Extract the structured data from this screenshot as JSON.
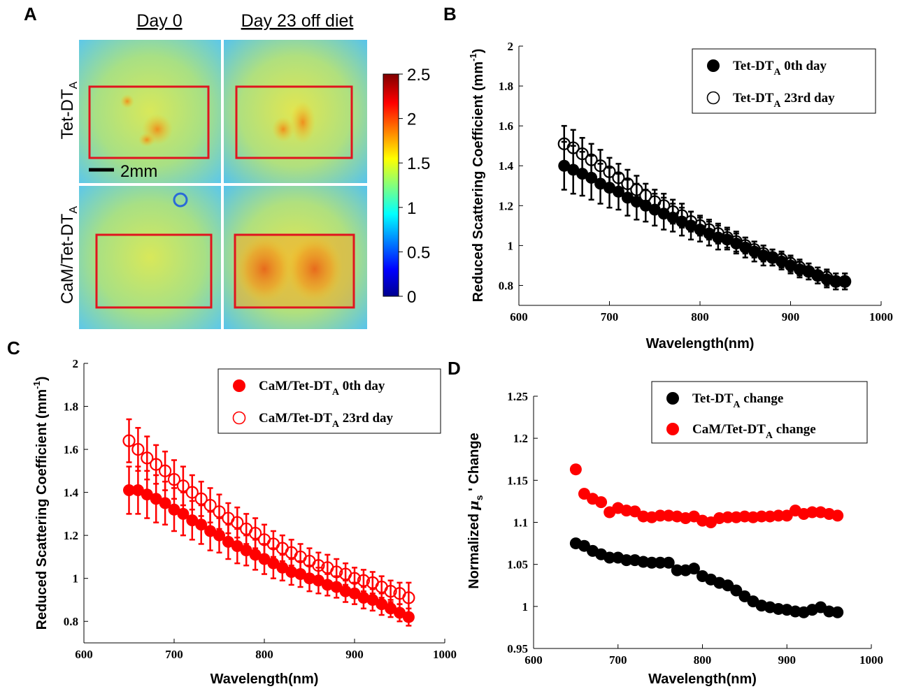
{
  "panel_labels": [
    "A",
    "B",
    "C",
    "D"
  ],
  "panel_a": {
    "column_headers": [
      "Day 0",
      "Day 23 off diet"
    ],
    "row_labels": [
      {
        "main": "Tet-DT",
        "sub": "A"
      },
      {
        "main": "CaM/Tet-DT",
        "sub": "A"
      }
    ],
    "scale_bar_label": "2mm",
    "colorbar": {
      "ticks": [
        "2.5",
        "2",
        "1.5",
        "1",
        "0.5",
        "0"
      ],
      "min": 0,
      "max": 2.5,
      "colormap": "jet"
    },
    "roi_color": "#e0141e"
  },
  "chart_data": [
    {
      "panel": "B",
      "type": "scatter",
      "xlabel": "Wavelength(nm)",
      "ylabel": "Reduced Scattering Coefficient (mm⁻¹)",
      "xlim": [
        600,
        1000
      ],
      "ylim": [
        0.7,
        2.0
      ],
      "xticks": [
        600,
        700,
        800,
        900,
        1000
      ],
      "yticks": [
        0.8,
        1,
        1.2,
        1.4,
        1.6,
        1.8,
        2
      ],
      "ytick_labels": [
        "0.8",
        "1",
        "1.2",
        "1.4",
        "1.6",
        "1.8",
        "2"
      ],
      "legend_position": "top-right",
      "wavelength_start": 650,
      "wavelength_step": 10,
      "series": [
        {
          "name_main": "Tet-DT",
          "name_sub": "A",
          "name_suffix": " 0th day",
          "marker": "filled",
          "color": "#000000",
          "values": [
            1.4,
            1.38,
            1.36,
            1.34,
            1.31,
            1.29,
            1.27,
            1.24,
            1.22,
            1.2,
            1.18,
            1.16,
            1.14,
            1.12,
            1.1,
            1.08,
            1.06,
            1.04,
            1.03,
            1.01,
            0.99,
            0.97,
            0.95,
            0.94,
            0.92,
            0.9,
            0.88,
            0.87,
            0.85,
            0.83,
            0.82,
            0.82
          ],
          "errors": [
            0.12,
            0.12,
            0.11,
            0.11,
            0.1,
            0.1,
            0.09,
            0.09,
            0.09,
            0.08,
            0.08,
            0.08,
            0.07,
            0.07,
            0.07,
            0.06,
            0.06,
            0.06,
            0.05,
            0.05,
            0.05,
            0.05,
            0.05,
            0.04,
            0.04,
            0.04,
            0.04,
            0.04,
            0.04,
            0.04,
            0.04,
            0.04
          ]
        },
        {
          "name_main": "Tet-DT",
          "name_sub": "A",
          "name_suffix": " 23rd day",
          "marker": "open",
          "color": "#000000",
          "values": [
            1.51,
            1.49,
            1.46,
            1.43,
            1.4,
            1.37,
            1.34,
            1.31,
            1.28,
            1.25,
            1.22,
            1.2,
            1.17,
            1.15,
            1.12,
            1.1,
            1.08,
            1.06,
            1.04,
            1.02,
            1.0,
            0.98,
            0.96,
            0.94,
            0.93,
            0.91,
            0.89,
            0.87,
            0.85,
            0.84,
            0.82,
            0.82
          ],
          "errors": [
            0.09,
            0.09,
            0.08,
            0.08,
            0.08,
            0.07,
            0.07,
            0.07,
            0.07,
            0.06,
            0.06,
            0.06,
            0.06,
            0.06,
            0.05,
            0.05,
            0.05,
            0.05,
            0.05,
            0.05,
            0.04,
            0.04,
            0.04,
            0.04,
            0.04,
            0.04,
            0.04,
            0.04,
            0.04,
            0.04,
            0.04,
            0.04
          ]
        }
      ]
    },
    {
      "panel": "C",
      "type": "scatter",
      "xlabel": "Wavelength(nm)",
      "ylabel": "Reduced Scattering Coefficient (mm⁻¹)",
      "xlim": [
        600,
        1000
      ],
      "ylim": [
        0.7,
        2.0
      ],
      "xticks": [
        600,
        700,
        800,
        900,
        1000
      ],
      "yticks": [
        0.8,
        1,
        1.2,
        1.4,
        1.6,
        1.8,
        2
      ],
      "ytick_labels": [
        "0.8",
        "1",
        "1.2",
        "1.4",
        "1.6",
        "1.8",
        "2"
      ],
      "legend_position": "top-right",
      "wavelength_start": 650,
      "wavelength_step": 10,
      "series": [
        {
          "name_main": "CaM/Tet-DT",
          "name_sub": "A",
          "name_suffix": " 0th day",
          "marker": "filled",
          "color": "#ff0000",
          "values": [
            1.41,
            1.41,
            1.39,
            1.37,
            1.35,
            1.32,
            1.3,
            1.27,
            1.25,
            1.22,
            1.2,
            1.17,
            1.15,
            1.13,
            1.11,
            1.09,
            1.07,
            1.05,
            1.03,
            1.02,
            1.0,
            0.99,
            0.97,
            0.96,
            0.94,
            0.93,
            0.91,
            0.9,
            0.88,
            0.86,
            0.84,
            0.82
          ],
          "errors": [
            0.11,
            0.11,
            0.11,
            0.11,
            0.1,
            0.1,
            0.1,
            0.09,
            0.09,
            0.09,
            0.08,
            0.08,
            0.08,
            0.07,
            0.07,
            0.07,
            0.07,
            0.06,
            0.06,
            0.06,
            0.06,
            0.06,
            0.05,
            0.05,
            0.05,
            0.05,
            0.05,
            0.05,
            0.05,
            0.04,
            0.04,
            0.04
          ]
        },
        {
          "name_main": "CaM/Tet-DT",
          "name_sub": "A",
          "name_suffix": " 23rd day",
          "marker": "open",
          "color": "#ff0000",
          "values": [
            1.64,
            1.6,
            1.56,
            1.53,
            1.5,
            1.46,
            1.43,
            1.4,
            1.37,
            1.34,
            1.31,
            1.28,
            1.26,
            1.23,
            1.21,
            1.18,
            1.16,
            1.14,
            1.12,
            1.1,
            1.08,
            1.06,
            1.05,
            1.03,
            1.02,
            1.0,
            0.99,
            0.98,
            0.96,
            0.94,
            0.93,
            0.91
          ],
          "errors": [
            0.1,
            0.1,
            0.1,
            0.09,
            0.09,
            0.09,
            0.09,
            0.08,
            0.08,
            0.08,
            0.08,
            0.07,
            0.07,
            0.07,
            0.07,
            0.07,
            0.06,
            0.06,
            0.06,
            0.06,
            0.06,
            0.06,
            0.06,
            0.06,
            0.05,
            0.05,
            0.05,
            0.05,
            0.05,
            0.05,
            0.05,
            0.07
          ]
        }
      ]
    },
    {
      "panel": "D",
      "type": "scatter",
      "xlabel": "Wavelength(nm)",
      "ylabel_main": "Normalized",
      "ylabel_mu": "μ",
      "ylabel_sub": "s",
      "ylabel_tail": " ' Change",
      "xlim": [
        600,
        1000
      ],
      "ylim": [
        0.95,
        1.25
      ],
      "xticks": [
        600,
        700,
        800,
        900,
        1000
      ],
      "yticks": [
        0.95,
        1,
        1.05,
        1.1,
        1.15,
        1.2,
        1.25
      ],
      "ytick_labels": [
        "0.95",
        "1",
        "1.05",
        "1.1",
        "1.15",
        "1.2",
        "1.25"
      ],
      "legend_position": "top-right",
      "wavelength_start": 650,
      "wavelength_step": 10,
      "series": [
        {
          "name_main": "Tet-DT",
          "name_sub": "A",
          "name_suffix": " change",
          "marker": "filled",
          "color": "#000000",
          "values": [
            1.075,
            1.072,
            1.066,
            1.062,
            1.058,
            1.058,
            1.055,
            1.055,
            1.053,
            1.052,
            1.052,
            1.052,
            1.043,
            1.043,
            1.045,
            1.036,
            1.032,
            1.028,
            1.025,
            1.019,
            1.012,
            1.006,
            1.001,
            0.999,
            0.997,
            0.996,
            0.994,
            0.993,
            0.996,
            0.999,
            0.994,
            0.993
          ]
        },
        {
          "name_main": "CaM/Tet-DT",
          "name_sub": "A",
          "name_suffix": " change",
          "marker": "filled",
          "color": "#ff0000",
          "values": [
            1.163,
            1.134,
            1.128,
            1.124,
            1.112,
            1.117,
            1.114,
            1.113,
            1.107,
            1.106,
            1.108,
            1.108,
            1.107,
            1.105,
            1.107,
            1.102,
            1.1,
            1.105,
            1.106,
            1.106,
            1.107,
            1.106,
            1.107,
            1.107,
            1.108,
            1.108,
            1.114,
            1.11,
            1.112,
            1.112,
            1.11,
            1.108
          ]
        }
      ]
    }
  ]
}
